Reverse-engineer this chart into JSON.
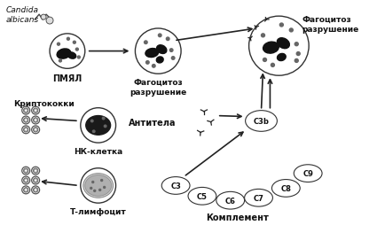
{
  "bg_color": "#ffffff",
  "labels": {
    "candida": "Candida\nalbicans",
    "pmyal": "ПМЯЛ",
    "phago1": "Фагоцитоз\nразрушение",
    "phago2": "Фагоцитоз\nразрушение",
    "antitela": "Антитела",
    "c3b": "C3b",
    "complement_label": "Комплемент",
    "kriptokokki": "Криптококки",
    "nk": "НК-клетка",
    "t_lymph": "Т-лимфоцит",
    "c3": "C3",
    "c5": "C5",
    "c6": "C6",
    "c7": "C7",
    "c8": "C8",
    "c9": "C9"
  },
  "colors": {
    "cell_fill": "#ffffff",
    "cell_edge": "#333333",
    "nucleus_dark": "#111111",
    "arrow": "#222222",
    "text": "#111111",
    "complement_fill": "#ffffff",
    "dot": "#666666",
    "krypto_ring": "#555555",
    "krypto_inner": "#999999"
  }
}
